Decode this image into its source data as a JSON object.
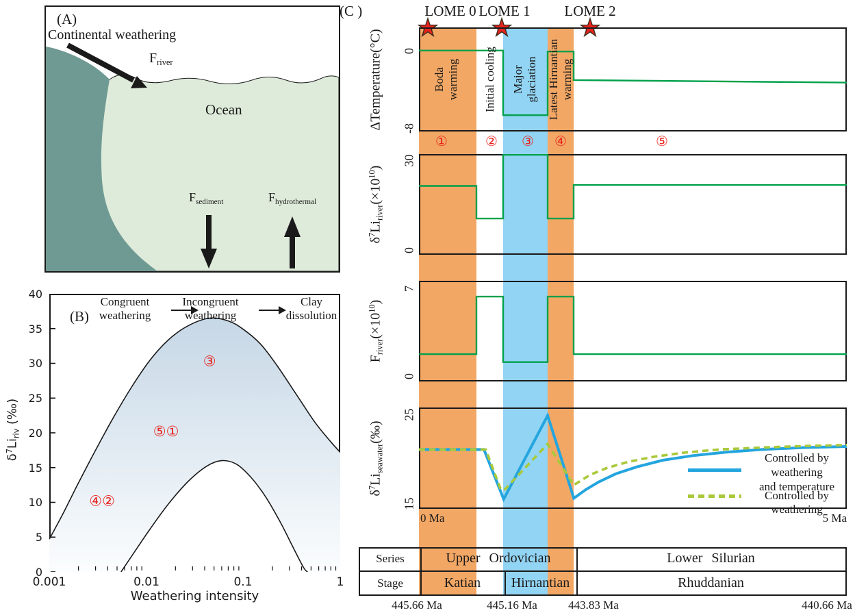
{
  "figure": {
    "panel_a": {
      "tag": "(A)",
      "title": "Continental weathering",
      "ocean": "Ocean",
      "f_river": [
        {
          "t": "F"
        },
        {
          "t": "river",
          "s": "sub"
        }
      ],
      "f_sediment": [
        {
          "t": "F"
        },
        {
          "t": "sediment",
          "s": "sub"
        }
      ],
      "f_hydrothermal": [
        {
          "t": "F"
        },
        {
          "t": "hydrothermal",
          "s": "sub"
        }
      ],
      "colors": {
        "land": "#6F9A93",
        "ocean": "#DEEBDA"
      }
    },
    "panel_b": {
      "tag": "(B)",
      "zones": [
        [
          "Congruent",
          "weathering"
        ],
        [
          "Incongruent",
          "weathering"
        ],
        [
          "Clay",
          "dissolution"
        ]
      ],
      "ylabel": [
        {
          "t": "δ"
        },
        {
          "t": "7",
          "s": "sup"
        },
        {
          "t": "Li"
        },
        {
          "t": "riv",
          "s": "sub"
        },
        {
          "t": " (‰)"
        }
      ],
      "xlabel": "Weathering intensity",
      "yticks": [
        "40",
        "35",
        "30",
        "25",
        "20",
        "15",
        "10",
        "5",
        "0"
      ],
      "xticks": [
        "0.001",
        "0.01",
        "0.1",
        "1"
      ]
    },
    "panel_c": {
      "tag": "(C )",
      "lome": [
        "LOME 0",
        "LOME 1",
        "LOME 2"
      ],
      "phases": [
        "①",
        "②",
        "③",
        "④",
        "⑤"
      ],
      "band_labels": [
        [
          "Boda",
          "warming"
        ],
        [
          "Initial cooling"
        ],
        [
          "Major",
          "glaciation"
        ],
        [
          "Latest Hirnantian",
          "warming"
        ]
      ],
      "temp_ylabel": "ΔTemperature(°C)",
      "li_ylabel": [
        {
          "t": "δ"
        },
        {
          "t": "7",
          "s": "sup"
        },
        {
          "t": "Li"
        },
        {
          "t": "river",
          "s": "sub"
        },
        {
          "t": "(×10"
        },
        {
          "t": "10",
          "s": "sup"
        },
        {
          "t": ")"
        }
      ],
      "f_ylabel": [
        {
          "t": "F"
        },
        {
          "t": "river",
          "s": "sub"
        },
        {
          "t": "(×10"
        },
        {
          "t": "10",
          "s": "sup"
        },
        {
          "t": ")"
        }
      ],
      "sea_ylabel": [
        {
          "t": "δ"
        },
        {
          "t": "7",
          "s": "sup"
        },
        {
          "t": "Li"
        },
        {
          "t": "seawater",
          "s": "sub"
        },
        {
          "t": "(‰)"
        }
      ],
      "temp_yticks": [
        "0",
        "-8"
      ],
      "li_yticks": [
        "30",
        "0"
      ],
      "f_yticks": [
        "7",
        "0"
      ],
      "sea_yticks": [
        "25",
        "15"
      ],
      "x_left": "0 Ma",
      "x_right": "5 Ma",
      "legend": [
        {
          "lines": [
            "Controlled by weathering",
            "and temperature"
          ],
          "color": "#24A5DE",
          "dash": false
        },
        {
          "lines": [
            "Controlled by weathering"
          ],
          "color": "#A9C93A",
          "dash": true
        }
      ],
      "table": {
        "row_headers": [
          "Series",
          "Stage"
        ],
        "series_row": [
          "Upper  Ordovician",
          "Lower  Silurian"
        ],
        "stage_row": [
          "Katian",
          "Hirnantian",
          "Rhuddanian"
        ],
        "ages": [
          "445.66 Ma",
          "445.16 Ma",
          "443.83 Ma",
          "440.66 Ma"
        ]
      },
      "colors": {
        "orange_band": "#F2A765",
        "blue_band": "#92D4F4",
        "green_line": "#00A14B",
        "red": "#E8231E"
      }
    }
  },
  "chart_data": [
    {
      "id": "chart-temp",
      "type": "line",
      "title": "ΔTemperature(°C)",
      "xlim": [
        0,
        5
      ],
      "ylim": [
        -8,
        2.22
      ],
      "yticks": [
        0,
        -8
      ],
      "xlabel": "Ma",
      "grid": false,
      "series": [
        {
          "name": "delta-temperature",
          "color": "#00A14B",
          "width": 2.4,
          "points": [
            [
              0,
              -0.05
            ],
            [
              0.984,
              -0.05
            ],
            [
              0.984,
              -6.4
            ],
            [
              1.504,
              -6.4
            ],
            [
              1.504,
              -0.15
            ],
            [
              1.808,
              -0.15
            ],
            [
              1.808,
              -2.95
            ],
            [
              5,
              -3.2
            ]
          ]
        }
      ]
    },
    {
      "id": "chart-li-river",
      "type": "line",
      "title": "δ7Li river (×10^10)",
      "xlim": [
        0,
        5
      ],
      "ylim": [
        0,
        30
      ],
      "yticks": [
        30,
        0
      ],
      "grid": false,
      "series": [
        {
          "name": "li7-river",
          "color": "#00A14B",
          "width": 2.4,
          "points": [
            [
              0,
              20.5
            ],
            [
              0.672,
              20.5
            ],
            [
              0.672,
              10.8
            ],
            [
              0.984,
              10.8
            ],
            [
              0.984,
              29.8
            ],
            [
              1.504,
              29.8
            ],
            [
              1.504,
              10.8
            ],
            [
              1.808,
              10.8
            ],
            [
              1.808,
              20.8
            ],
            [
              5,
              20.8
            ]
          ]
        }
      ]
    },
    {
      "id": "chart-f-river",
      "type": "line",
      "title": "F river (×10^10)",
      "xlim": [
        0,
        5
      ],
      "ylim": [
        0,
        7
      ],
      "yticks": [
        7,
        0
      ],
      "grid": false,
      "series": [
        {
          "name": "f-river",
          "color": "#00A14B",
          "width": 2.4,
          "points": [
            [
              0,
              1.9
            ],
            [
              0.672,
              1.9
            ],
            [
              0.672,
              5.9
            ],
            [
              0.984,
              5.9
            ],
            [
              0.984,
              1.35
            ],
            [
              1.504,
              1.35
            ],
            [
              1.504,
              5.9
            ],
            [
              1.808,
              5.9
            ],
            [
              1.808,
              1.9
            ],
            [
              5,
              1.9
            ]
          ]
        }
      ]
    },
    {
      "id": "chart-seawater",
      "type": "line",
      "title": "δ7Li seawater (‰)",
      "xlim": [
        0,
        5
      ],
      "ylim": [
        15,
        25
      ],
      "yticks": [
        25,
        15
      ],
      "xtick_labels": [
        "0 Ma",
        "5 Ma"
      ],
      "legend_position": "right",
      "series": [
        {
          "name": "controlled-by-weathering-and-temperature",
          "color": "#24A5DE",
          "width": 4,
          "points": [
            [
              0,
              20.85
            ],
            [
              0.76,
              20.85
            ],
            [
              0.99,
              15.95
            ],
            [
              1.504,
              24.2
            ],
            [
              1.81,
              16.05
            ],
            [
              1.95,
              16.9
            ],
            [
              2.1,
              17.65
            ],
            [
              2.3,
              18.45
            ],
            [
              2.55,
              19.15
            ],
            [
              2.85,
              19.8
            ],
            [
              3.2,
              20.25
            ],
            [
              3.6,
              20.6
            ],
            [
              4.0,
              20.85
            ],
            [
              4.5,
              21.05
            ],
            [
              5,
              21.15
            ]
          ]
        },
        {
          "name": "controlled-by-weathering",
          "color": "#A9C93A",
          "width": 3.6,
          "dash": "9 6",
          "points": [
            [
              0,
              20.85
            ],
            [
              0.78,
              20.85
            ],
            [
              0.95,
              17.05
            ],
            [
              0.99,
              16.8
            ],
            [
              1.504,
              21.4
            ],
            [
              1.81,
              17.35
            ],
            [
              2.0,
              18.35
            ],
            [
              2.2,
              19.05
            ],
            [
              2.45,
              19.65
            ],
            [
              2.75,
              20.15
            ],
            [
              3.1,
              20.55
            ],
            [
              3.5,
              20.85
            ],
            [
              4.0,
              21.05
            ],
            [
              4.5,
              21.2
            ],
            [
              5,
              21.3
            ]
          ]
        }
      ]
    },
    {
      "id": "chart-weathering",
      "type": "area",
      "title": "δ7Li riv vs weathering intensity",
      "xscale": "log",
      "xlim": [
        0.001,
        1
      ],
      "ylim": [
        0,
        40
      ],
      "ytick_step": 5,
      "log_minor_ticks": true,
      "smooth": true,
      "xlabel": "Weathering intensity",
      "ylabel": "δ7Li riv (‰)",
      "series": [
        {
          "name": "outer-envelope",
          "color": "#1a1a1a",
          "width": 1.6,
          "fill": "gradient",
          "points": [
            [
              0.001,
              4.7
            ],
            [
              0.0014,
              8.5
            ],
            [
              0.002,
              12.8
            ],
            [
              0.003,
              17.5
            ],
            [
              0.0045,
              22.0
            ],
            [
              0.007,
              26.5
            ],
            [
              0.011,
              30.5
            ],
            [
              0.017,
              33.4
            ],
            [
              0.027,
              35.4
            ],
            [
              0.045,
              36.5
            ],
            [
              0.07,
              36.1
            ],
            [
              0.1,
              34.9
            ],
            [
              0.15,
              32.8
            ],
            [
              0.22,
              29.8
            ],
            [
              0.35,
              25.6
            ],
            [
              0.55,
              21.5
            ],
            [
              0.8,
              18.7
            ],
            [
              1,
              17.2
            ]
          ]
        },
        {
          "name": "inner-envelope",
          "color": "#1a1a1a",
          "width": 1.6,
          "fill": "#ffffff",
          "points": [
            [
              0.0055,
              0
            ],
            [
              0.0075,
              2.8
            ],
            [
              0.011,
              6.2
            ],
            [
              0.017,
              9.8
            ],
            [
              0.027,
              13.0
            ],
            [
              0.042,
              15.2
            ],
            [
              0.06,
              16.0
            ],
            [
              0.085,
              15.5
            ],
            [
              0.12,
              13.6
            ],
            [
              0.17,
              10.8
            ],
            [
              0.24,
              7.2
            ],
            [
              0.33,
              3.4
            ],
            [
              0.42,
              0.6
            ],
            [
              0.46,
              0
            ]
          ]
        }
      ],
      "annotations": [
        {
          "label": "③",
          "x": 0.045,
          "y": 29.6
        },
        {
          "label": "⑤①",
          "x": 0.016,
          "y": 19.5
        },
        {
          "label": "④②",
          "x": 0.0035,
          "y": 9.5
        }
      ]
    }
  ]
}
